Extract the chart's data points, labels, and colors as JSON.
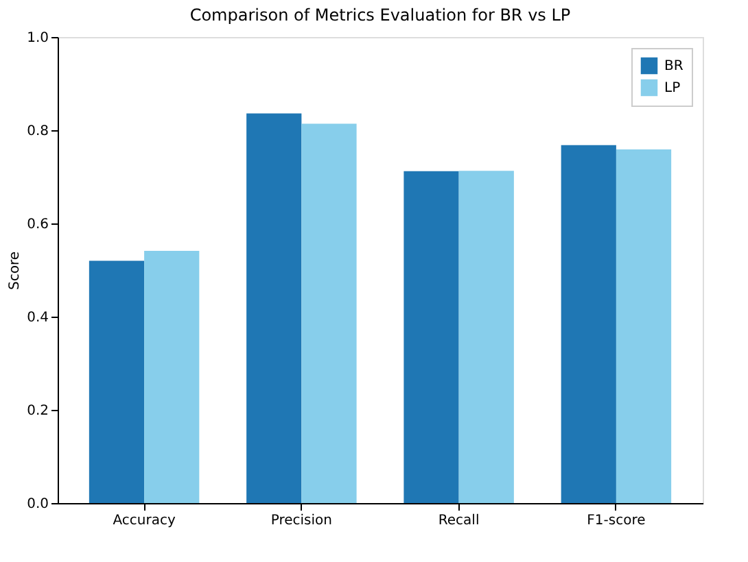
{
  "chart_data": {
    "type": "bar",
    "title": "Comparison of Metrics Evaluation for BR vs LP",
    "ylabel": "Score",
    "categories": [
      "Accuracy",
      "Precision",
      "Recall",
      "F1-score"
    ],
    "series": [
      {
        "name": "BR",
        "color": "#1f77b4",
        "values": [
          0.52,
          0.836,
          0.712,
          0.768
        ]
      },
      {
        "name": "LP",
        "color": "#87ceeb",
        "values": [
          0.541,
          0.814,
          0.713,
          0.759
        ]
      }
    ],
    "ylim": [
      0,
      1.0
    ],
    "yticks": [
      {
        "value": 0,
        "label": "0.0"
      },
      {
        "value": 0.2,
        "label": "0.2"
      },
      {
        "value": 0.4,
        "label": "0.4"
      },
      {
        "value": 0.6,
        "label": "0.6"
      },
      {
        "value": 0.8,
        "label": "0.8"
      },
      {
        "value": 1.0,
        "label": "1.0"
      }
    ],
    "grid": false,
    "legend": "top right"
  }
}
